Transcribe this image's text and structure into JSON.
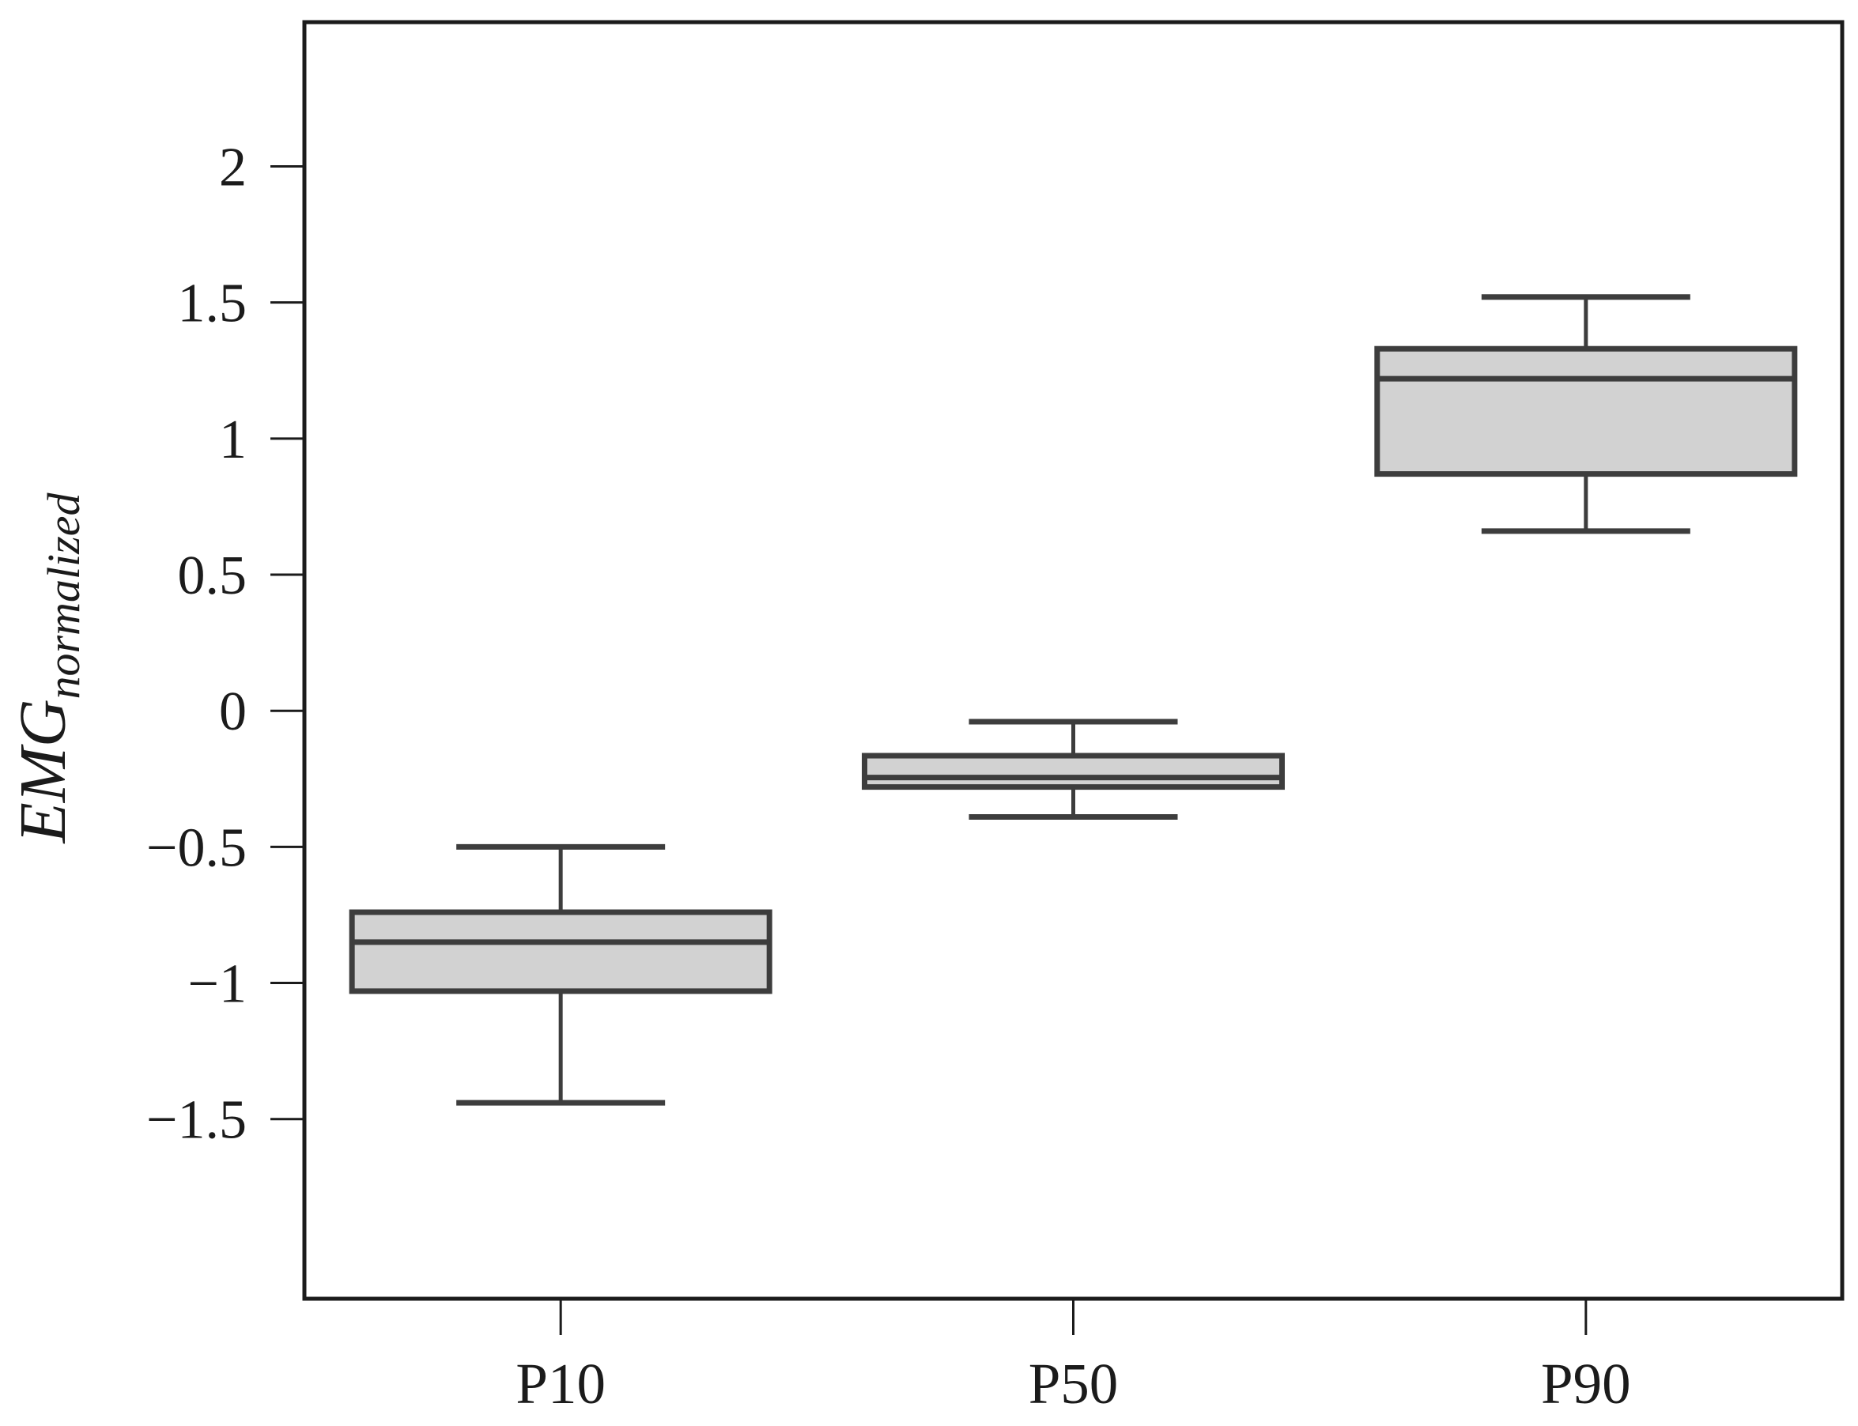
{
  "figure": {
    "background": "#ffffff"
  },
  "chart_data": {
    "type": "boxplot",
    "title": "",
    "ylabel_main": "EMG",
    "ylabel_sub": "normalized",
    "categories": [
      "P10",
      "P50",
      "P90"
    ],
    "boxes": [
      {
        "category": "P10",
        "whisker_low": -1.44,
        "q1": -1.03,
        "median": -0.85,
        "q3": -0.74,
        "whisker_high": -0.5
      },
      {
        "category": "P50",
        "whisker_low": -0.39,
        "q1": -0.28,
        "median": -0.245,
        "q3": -0.165,
        "whisker_high": -0.04
      },
      {
        "category": "P90",
        "whisker_low": 0.66,
        "q1": 0.87,
        "median": 1.22,
        "q3": 1.33,
        "whisker_high": 1.52
      }
    ],
    "yticks": {
      "values": [
        2,
        1.5,
        1,
        0.5,
        0,
        -0.5,
        -1,
        -1.5
      ],
      "labels": [
        "2",
        "1.5",
        "1",
        "0.5",
        "0",
        "−0.5",
        "−1",
        "−1.5"
      ]
    },
    "ylim": [
      -2.16,
      2.53
    ],
    "grid": false,
    "legend": null
  },
  "style": {
    "frame_color": "#1b1b1b",
    "box_edge_color": "#3d3d3d",
    "box_fill_color": "#d2d2d2",
    "text_color": "#1b1b1b"
  }
}
